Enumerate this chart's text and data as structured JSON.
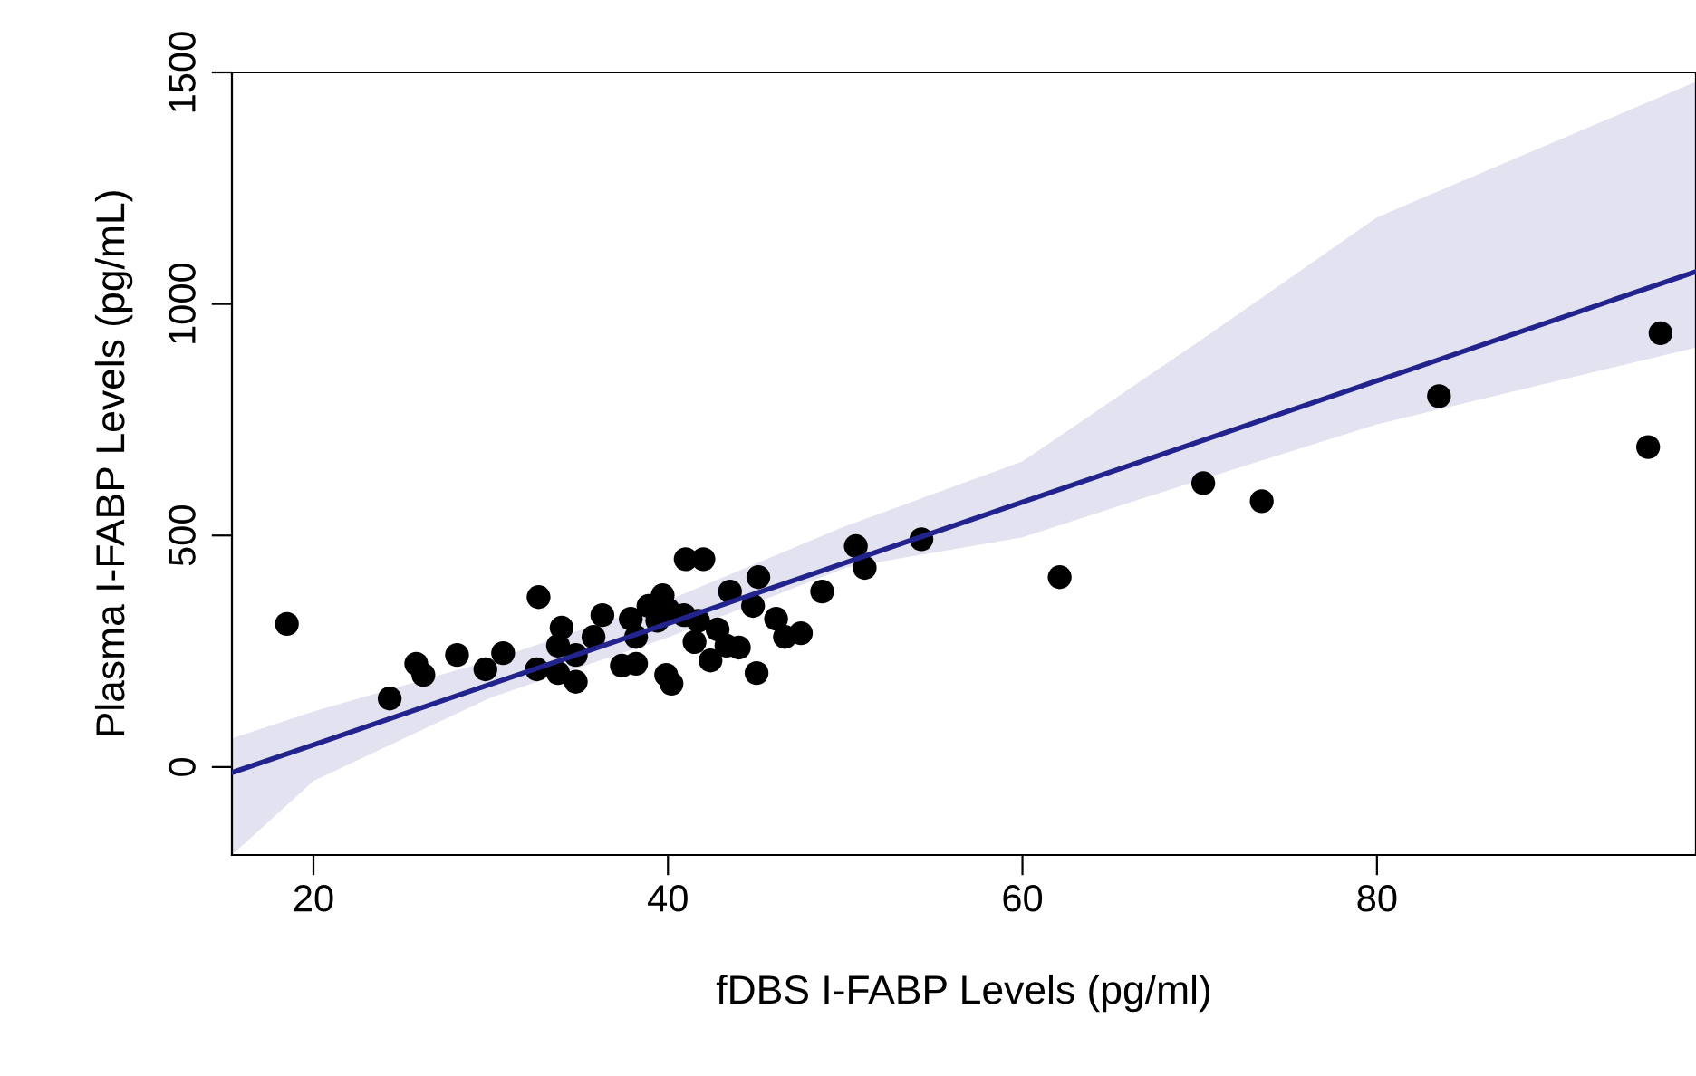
{
  "chart_data": {
    "type": "scatter",
    "xlabel": "fDBS I-FABP Levels (pg/ml)",
    "ylabel": "Plasma I-FABP Levels (pg/mL)",
    "xlim": [
      15.4,
      98
    ],
    "ylim": [
      -190,
      1500
    ],
    "xticks": [
      20,
      40,
      60,
      80
    ],
    "yticks": [
      0,
      500,
      1000,
      1500
    ],
    "grid": false,
    "legend": false,
    "marker": "circle",
    "series": [
      {
        "type": "line",
        "color": "#23238e",
        "marker": "none",
        "x": [
          15.4,
          20,
          30,
          40,
          50,
          60,
          70,
          80,
          98
        ],
        "values": [
          -12,
          48,
          179,
          310,
          441,
          572,
          703,
          834,
          1070
        ],
        "lower": [
          -190,
          -30,
          150,
          280,
          430,
          496,
          620,
          740,
          906
        ],
        "upper": [
          62,
          120,
          230,
          360,
          520,
          660,
          920,
          1187,
          1480
        ]
      },
      {
        "color": "#000000",
        "x": [
          18.5,
          24.3,
          25.8,
          26.2,
          28.1,
          29.7,
          30.7,
          32.7,
          32.6,
          34.0,
          34.8,
          35.8,
          33.8,
          34.8,
          33.8,
          36.3,
          37.4,
          38.2,
          37.9,
          38.2,
          38.9,
          39.7,
          40.0,
          39.4,
          40.9,
          39.9,
          40.2,
          41.0,
          42.0,
          41.5,
          42.4,
          42.8,
          43.3,
          44.0,
          41.7,
          43.5,
          44.8,
          45.1,
          45.0,
          46.1,
          46.6,
          47.5,
          48.7,
          50.6,
          51.1,
          54.3,
          62.1,
          70.2,
          73.5,
          83.5,
          95.3,
          96.0
        ],
        "values": [
          309,
          148,
          223,
          199,
          242,
          211,
          246,
          367,
          211,
          301,
          184,
          281,
          262,
          242,
          203,
          328,
          219,
          223,
          320,
          281,
          348,
          371,
          340,
          316,
          328,
          199,
          180,
          449,
          449,
          270,
          230,
          297,
          262,
          258,
          316,
          379,
          348,
          410,
          203,
          320,
          281,
          289,
          379,
          477,
          430,
          492,
          410,
          613,
          574,
          801,
          691,
          937
        ]
      }
    ]
  }
}
